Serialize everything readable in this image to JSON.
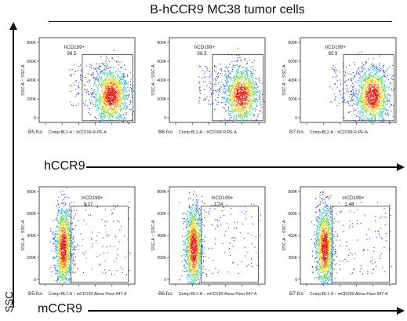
{
  "title": "B-hCCR9 MC38 tumor cells",
  "y_axis_label": "SSC",
  "rows": [
    {
      "label": "hCCR9"
    },
    {
      "label": "mCCR9"
    }
  ],
  "chart_data": [
    {
      "type": "scatter",
      "sample": "B5.fcs",
      "gate_name": "hCD199+",
      "gate_percent": "98.5",
      "xlabel": "Comp-BL2-A :: hCD199-R-PE-A",
      "ylabel": "SSC-A :: SSC-A",
      "yticks": [
        "0",
        "200K",
        "400K",
        "600K",
        "800K"
      ],
      "ylim": [
        0,
        800000
      ]
    },
    {
      "type": "scatter",
      "sample": "B6.fcs",
      "gate_name": "hCD199+",
      "gate_percent": "98.5",
      "xlabel": "Comp-BL2-A :: hCD199-R-PE-A",
      "ylabel": "SSC-A :: SSC-A",
      "yticks": [
        "0",
        "200K",
        "400K",
        "600K",
        "800K"
      ],
      "ylim": [
        0,
        800000
      ]
    },
    {
      "type": "scatter",
      "sample": "B7.fcs",
      "gate_name": "hCD199+",
      "gate_percent": "95.9",
      "xlabel": "Comp-BL2-A :: hCD199-R-PE-A",
      "ylabel": "SSC-A :: SSC-A",
      "yticks": [
        "0",
        "200K",
        "400K",
        "600K",
        "800K"
      ],
      "ylim": [
        0,
        800000
      ]
    },
    {
      "type": "scatter",
      "sample": "B5.fcs",
      "gate_name": "mCD199+",
      "gate_percent": "1.27",
      "xlabel": "Comp-RL1-A :: mCD199-Alexa Fluor 647-A",
      "ylabel": "SSC-A :: SSC-A",
      "yticks": [
        "0",
        "200K",
        "400K",
        "600K",
        "800K"
      ],
      "ylim": [
        0,
        800000
      ]
    },
    {
      "type": "scatter",
      "sample": "B6.fcs",
      "gate_name": "mCD199+",
      "gate_percent": "1.24",
      "xlabel": "Comp-RL1-A :: mCD199-Alexa Fluor 647-A",
      "ylabel": "SSC-A :: SSC-A",
      "yticks": [
        "0",
        "200K",
        "400K",
        "600K",
        "800K"
      ],
      "ylim": [
        0,
        800000
      ]
    },
    {
      "type": "scatter",
      "sample": "B7.fcs",
      "gate_name": "mCD199+",
      "gate_percent": "1.48",
      "xlabel": "Comp-RL1-A :: mCD199-Alexa Fluor 647-A",
      "ylabel": "SSC-A :: SSC-A",
      "yticks": [
        "0",
        "200K",
        "400K",
        "600K",
        "800K"
      ],
      "ylim": [
        0,
        800000
      ]
    }
  ]
}
